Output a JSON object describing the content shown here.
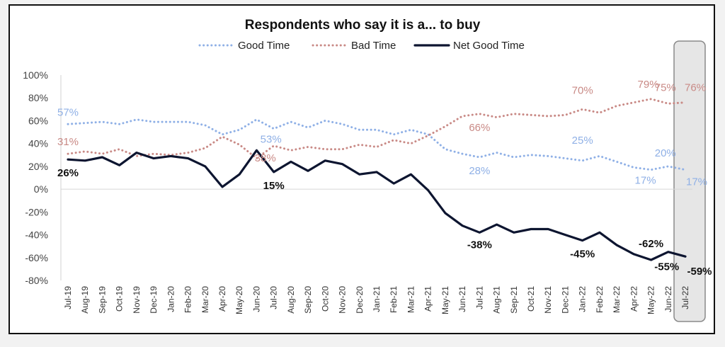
{
  "chart_data": {
    "type": "line",
    "title": "Respondents who say it is a... to buy",
    "legend_position": "top",
    "x": [
      "Jul-19",
      "Aug-19",
      "Sep-19",
      "Oct-19",
      "Nov-19",
      "Dec-19",
      "Jan-20",
      "Feb-20",
      "Mar-20",
      "Apr-20",
      "May-20",
      "Jun-20",
      "Jul-20",
      "Aug-20",
      "Sep-20",
      "Oct-20",
      "Nov-20",
      "Dec-20",
      "Jan-21",
      "Feb-21",
      "Mar-21",
      "Apr-21",
      "May-21",
      "Jun-21",
      "Jul-21",
      "Aug-21",
      "Sep-21",
      "Oct-21",
      "Nov-21",
      "Dec-21",
      "Jan-22",
      "Feb-22",
      "Mar-22",
      "Apr-22",
      "May-22",
      "Jun-22",
      "Jul-22"
    ],
    "ylim": [
      -80,
      100
    ],
    "yticks": [
      "100%",
      "80%",
      "60%",
      "40%",
      "20%",
      "0%",
      "-20%",
      "-40%",
      "-60%",
      "-80%"
    ],
    "highlight_category": "Jul-22",
    "series": [
      {
        "name": "Good Time",
        "color": "#8fb0e6",
        "style": "dotted",
        "values": [
          57,
          58,
          59,
          57,
          61,
          59,
          59,
          59,
          56,
          48,
          52,
          61,
          53,
          59,
          54,
          60,
          57,
          52,
          52,
          48,
          52,
          48,
          35,
          31,
          28,
          32,
          28,
          30,
          29,
          27,
          25,
          29,
          24,
          19,
          17,
          20,
          17
        ]
      },
      {
        "name": "Bad Time",
        "color": "#c98a86",
        "style": "dotted",
        "values": [
          31,
          33,
          31,
          35,
          29,
          31,
          30,
          32,
          36,
          46,
          39,
          27,
          38,
          34,
          37,
          35,
          35,
          39,
          37,
          43,
          40,
          47,
          55,
          64,
          66,
          63,
          66,
          65,
          64,
          65,
          70,
          67,
          73,
          76,
          79,
          75,
          76
        ]
      },
      {
        "name": "Net Good Time",
        "color": "#0d1530",
        "style": "solid",
        "values": [
          26,
          25,
          28,
          21,
          32,
          27,
          29,
          27,
          20,
          2,
          13,
          34,
          15,
          24,
          16,
          25,
          22,
          13,
          15,
          5,
          13,
          -1,
          -21,
          -32,
          -38,
          -31,
          -38,
          -35,
          -35,
          -40,
          -45,
          -38,
          -49,
          -57,
          -62,
          -55,
          -59
        ]
      }
    ],
    "data_labels": [
      {
        "series": 0,
        "index": 0,
        "text": "57%"
      },
      {
        "series": 0,
        "index": 12,
        "text": "53%"
      },
      {
        "series": 0,
        "index": 24,
        "text": "28%"
      },
      {
        "series": 0,
        "index": 30,
        "text": "25%"
      },
      {
        "series": 0,
        "index": 34,
        "text": "17%"
      },
      {
        "series": 0,
        "index": 35,
        "text": "20%"
      },
      {
        "series": 0,
        "index": 36,
        "text": "17%"
      },
      {
        "series": 1,
        "index": 0,
        "text": "31%"
      },
      {
        "series": 1,
        "index": 12,
        "text": "38%"
      },
      {
        "series": 1,
        "index": 24,
        "text": "66%"
      },
      {
        "series": 1,
        "index": 30,
        "text": "70%"
      },
      {
        "series": 1,
        "index": 34,
        "text": "79%"
      },
      {
        "series": 1,
        "index": 35,
        "text": "75%"
      },
      {
        "series": 1,
        "index": 36,
        "text": "76%"
      },
      {
        "series": 2,
        "index": 0,
        "text": "26%"
      },
      {
        "series": 2,
        "index": 12,
        "text": "15%"
      },
      {
        "series": 2,
        "index": 24,
        "text": "-38%"
      },
      {
        "series": 2,
        "index": 30,
        "text": "-45%"
      },
      {
        "series": 2,
        "index": 34,
        "text": "-62%"
      },
      {
        "series": 2,
        "index": 35,
        "text": "-55%"
      },
      {
        "series": 2,
        "index": 36,
        "text": "-59%"
      }
    ]
  }
}
